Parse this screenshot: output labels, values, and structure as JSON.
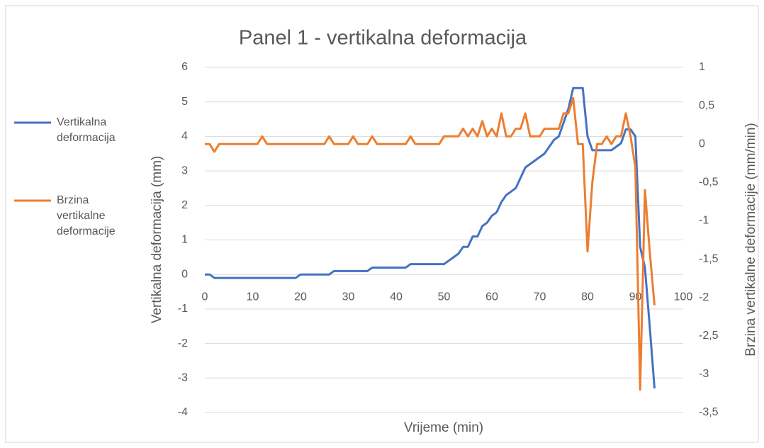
{
  "chart_data": {
    "type": "line",
    "title": "Panel 1 - vertikalna deformacija",
    "x_label": "Vrijeme (min)",
    "y_label": "Vertikalna deformacija (mm)",
    "y2_label": "Brzina vertikalne deformacije (mm/min)",
    "x": [
      0,
      1,
      2,
      3,
      4,
      5,
      6,
      7,
      8,
      9,
      10,
      11,
      12,
      13,
      14,
      15,
      16,
      17,
      18,
      19,
      20,
      21,
      22,
      23,
      24,
      25,
      26,
      27,
      28,
      29,
      30,
      31,
      32,
      33,
      34,
      35,
      36,
      37,
      38,
      39,
      40,
      41,
      42,
      43,
      44,
      45,
      46,
      47,
      48,
      49,
      50,
      51,
      52,
      53,
      54,
      55,
      56,
      57,
      58,
      59,
      60,
      61,
      62,
      63,
      64,
      65,
      66,
      67,
      68,
      69,
      70,
      71,
      72,
      73,
      74,
      75,
      76,
      77,
      78,
      79,
      80,
      81,
      82,
      83,
      84,
      85,
      86,
      87,
      88,
      89,
      90,
      91,
      92,
      93,
      94
    ],
    "series": [
      {
        "name": "Vertikalna deformacija",
        "color": "#4472c4",
        "axis": "y",
        "values": [
          0,
          0,
          -0.1,
          -0.1,
          -0.1,
          -0.1,
          -0.1,
          -0.1,
          -0.1,
          -0.1,
          -0.1,
          -0.1,
          -0.1,
          -0.1,
          -0.1,
          -0.1,
          -0.1,
          -0.1,
          -0.1,
          -0.1,
          0,
          0,
          0,
          0,
          0,
          0,
          0,
          0.1,
          0.1,
          0.1,
          0.1,
          0.1,
          0.1,
          0.1,
          0.1,
          0.2,
          0.2,
          0.2,
          0.2,
          0.2,
          0.2,
          0.2,
          0.2,
          0.3,
          0.3,
          0.3,
          0.3,
          0.3,
          0.3,
          0.3,
          0.3,
          0.4,
          0.5,
          0.6,
          0.8,
          0.8,
          1.1,
          1.1,
          1.4,
          1.5,
          1.7,
          1.8,
          2.1,
          2.3,
          2.4,
          2.5,
          2.8,
          3.1,
          3.2,
          3.3,
          3.4,
          3.5,
          3.7,
          3.9,
          4.0,
          4.4,
          4.8,
          5.4,
          5.4,
          5.4,
          4.0,
          3.6,
          3.6,
          3.6,
          3.6,
          3.6,
          3.7,
          3.8,
          4.2,
          4.2,
          4.0,
          0.8,
          0.2,
          -1.5,
          -3.3
        ]
      },
      {
        "name": "Brzina vertikalne deformacije",
        "color": "#ed7d31",
        "axis": "y2",
        "values": [
          0,
          0,
          -0.1,
          0,
          0,
          0,
          0,
          0,
          0,
          0,
          0,
          0,
          0.1,
          0,
          0,
          0,
          0,
          0,
          0,
          0,
          0,
          0,
          0,
          0,
          0,
          0,
          0.1,
          0,
          0,
          0,
          0,
          0.1,
          0,
          0,
          0,
          0.1,
          0,
          0,
          0,
          0,
          0,
          0,
          0,
          0.1,
          0,
          0,
          0,
          0,
          0,
          0,
          0.1,
          0.1,
          0.1,
          0.1,
          0.2,
          0.1,
          0.2,
          0.1,
          0.3,
          0.1,
          0.2,
          0.1,
          0.4,
          0.1,
          0.1,
          0.2,
          0.2,
          0.4,
          0.1,
          0.1,
          0.1,
          0.2,
          0.2,
          0.2,
          0.2,
          0.4,
          0.4,
          0.6,
          0,
          0,
          -1.4,
          -0.5,
          0,
          0,
          0.1,
          0,
          0.1,
          0.1,
          0.4,
          0.1,
          -0.3,
          -3.2,
          -0.6,
          -1.4,
          -2.1
        ]
      }
    ],
    "xlim": [
      0,
      100
    ],
    "xticks": [
      0,
      10,
      20,
      30,
      40,
      50,
      60,
      70,
      80,
      90,
      100
    ],
    "ylim": [
      -4,
      6
    ],
    "yticks": [
      -4,
      -3,
      -2,
      -1,
      0,
      1,
      2,
      3,
      4,
      5,
      6
    ],
    "y2lim": [
      -3.5,
      1
    ],
    "y2ticks": [
      {
        "value": 1,
        "label": "1"
      },
      {
        "value": 0.5,
        "label": "0,5"
      },
      0,
      {
        "value": -0.5,
        "label": "-0,5"
      },
      -1,
      {
        "value": -1.5,
        "label": "-1,5"
      },
      -2,
      {
        "value": -2.5,
        "label": "-2,5"
      },
      -3,
      {
        "value": -3.5,
        "label": "-3,5"
      }
    ],
    "grid": true,
    "legend": "left"
  }
}
